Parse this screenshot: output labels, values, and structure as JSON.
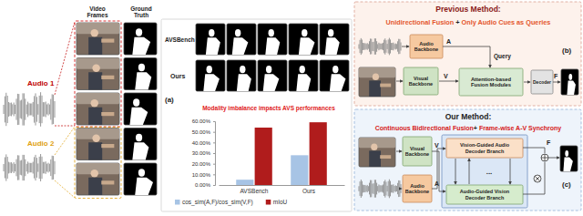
{
  "panel_a": {
    "label": "(a)",
    "audio_labels": [
      "Audio 1",
      "Audio 2"
    ],
    "column_headers": [
      "Video Frames",
      "Ground Truth"
    ],
    "row_labels": [
      "AVSBench",
      "Ours"
    ]
  },
  "chart_data": {
    "type": "bar",
    "title": "Modality imbalance impacts AVS performances",
    "categories": [
      "AVSBench",
      "Ours"
    ],
    "series": [
      {
        "name": "cos_sim(A,F)/cos_sim(V,F)",
        "color": "#a7c4e5",
        "values": [
          5,
          28
        ]
      },
      {
        "name": "mIoU",
        "color": "#b01c1c",
        "values": [
          54,
          59
        ]
      }
    ],
    "ylim": [
      0,
      60
    ],
    "yticks": [
      {
        "value": 0,
        "label": "0.00%"
      },
      {
        "value": 10,
        "label": "10.00%"
      },
      {
        "value": 20,
        "label": "20.00%"
      },
      {
        "value": 30,
        "label": "30.00%"
      },
      {
        "value": 40,
        "label": "40.00%"
      },
      {
        "value": 50,
        "label": "50.00%"
      },
      {
        "value": 60,
        "label": "60.00%"
      }
    ],
    "grid": false,
    "legend": "bottom"
  },
  "panel_b": {
    "label": "(b)",
    "title": "Previous Method:",
    "headline": [
      "Unidirectional Fusion",
      " + ",
      "Only Audio Cues as Queries"
    ],
    "nodes": {
      "audio_backbone": "Audio Backbone",
      "visual_backbone": "Visual Backbone",
      "fusion": "Attention-based Fusion Modules",
      "decoder": "Decoder"
    },
    "symbols": {
      "audio": "A",
      "visual": "V",
      "query": "Query",
      "fused": "F"
    }
  },
  "panel_c": {
    "label": "(c)",
    "title": "Our Method:",
    "headline": [
      "Continuous Bidirectional Fusion",
      "+ ",
      "Frame-wise A-V Synchrony"
    ],
    "nodes": {
      "visual_backbone": "Visual Backbone",
      "audio_backbone": "Audio Backbone",
      "audio_decoder": "Vision-Guided Audio Decoder Branch",
      "vision_decoder": "Audio-Guided Vision Decoder Branch",
      "ellipsis": "..."
    },
    "symbols": {
      "visual": "V",
      "audio": "A",
      "fused": "F"
    }
  }
}
